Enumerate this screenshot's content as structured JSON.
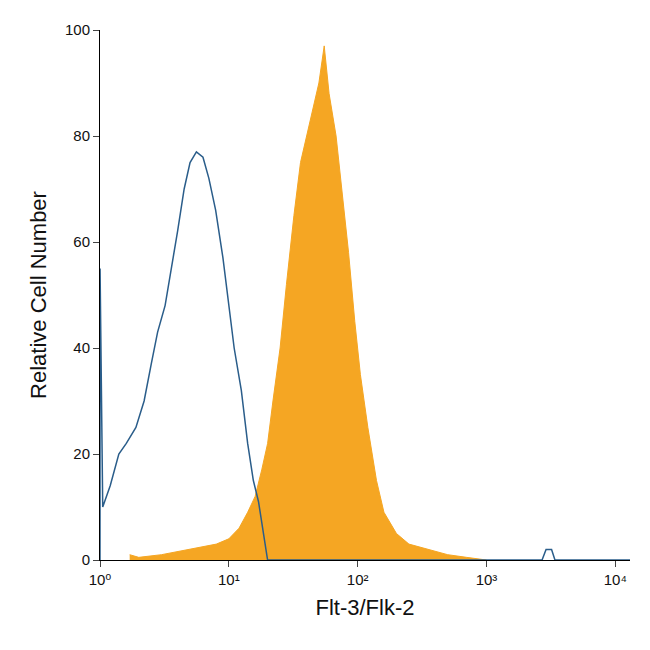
{
  "chart_data": {
    "type": "line",
    "x_label": "Flt-3/Flk-2",
    "y_label": "Relative Cell Number",
    "log": "x",
    "grid": false,
    "xlim": [
      1,
      13000
    ],
    "xticks": [
      {
        "value": 1,
        "label": "10⁰"
      },
      {
        "value": 10,
        "label": "10¹"
      },
      {
        "value": 100,
        "label": "10²"
      },
      {
        "value": 1000,
        "label": "10³"
      },
      {
        "value": 10000,
        "label": "10⁴"
      }
    ],
    "ylim": [
      0,
      100
    ],
    "yticks": [
      0,
      20,
      40,
      60,
      80,
      100
    ],
    "series": [
      {
        "type": "area",
        "color": "#f5a623",
        "x": [
          1.7,
          2,
          3,
          5,
          8,
          10,
          12,
          14,
          16,
          18,
          20,
          22,
          25,
          28,
          32,
          36,
          40,
          45,
          50,
          55,
          60,
          68,
          75,
          85,
          95,
          105,
          120,
          140,
          160,
          200,
          250,
          350,
          500,
          700,
          1000
        ],
        "values": [
          1,
          0.5,
          1,
          2,
          3,
          4,
          6,
          9,
          12,
          17,
          22,
          30,
          40,
          52,
          65,
          75,
          80,
          85,
          90,
          97,
          88,
          80,
          70,
          58,
          45,
          35,
          25,
          15,
          9,
          5,
          3,
          2,
          1,
          0.5,
          0
        ]
      },
      {
        "type": "line",
        "color": "#2a5d8a",
        "x": [
          1,
          1.001,
          1.05,
          1.2,
          1.4,
          1.6,
          1.9,
          2.2,
          2.5,
          2.8,
          3.2,
          3.6,
          4,
          4.5,
          5,
          5.6,
          6.3,
          7,
          7.9,
          9,
          10,
          11,
          12.5,
          14,
          15.5,
          17,
          20,
          2700,
          2900,
          3200,
          3400,
          13000
        ],
        "values": [
          0,
          55,
          10,
          14,
          20,
          22,
          25,
          30,
          37,
          43,
          48,
          55,
          62,
          70,
          75,
          77,
          76,
          72,
          66,
          57,
          48,
          40,
          32,
          22,
          15,
          11,
          0,
          0,
          2,
          2,
          0,
          0
        ]
      }
    ]
  }
}
